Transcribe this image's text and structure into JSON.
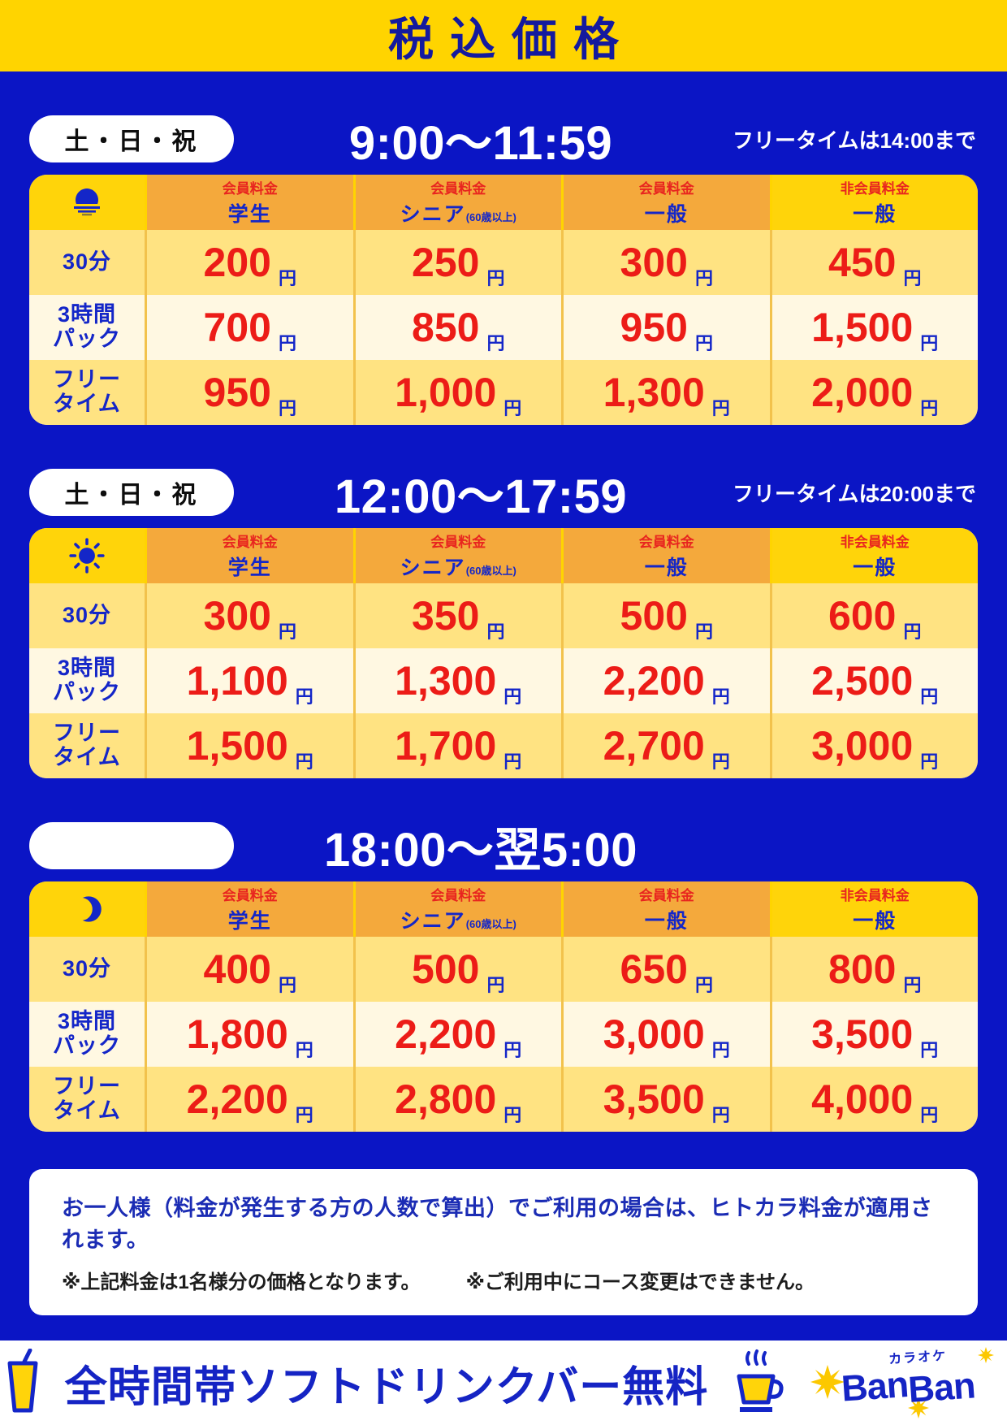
{
  "poster": {
    "title": "税込価格",
    "currency": "円"
  },
  "sections": [
    {
      "badge": "土・日・祝",
      "time_range": "9:00〜11:59",
      "freetime_note": "フリータイムは14:00まで",
      "icon": "sunrise-icon",
      "columns": [
        {
          "membership": "会員料金",
          "category": "学生",
          "suffix": ""
        },
        {
          "membership": "会員料金",
          "category": "シニア",
          "suffix": "(60歳以上)"
        },
        {
          "membership": "会員料金",
          "category": "一般",
          "suffix": ""
        },
        {
          "membership": "非会員料金",
          "category": "一般",
          "suffix": ""
        }
      ],
      "rows": [
        {
          "label_lines": [
            "30分"
          ],
          "prices": [
            "200",
            "250",
            "300",
            "450"
          ]
        },
        {
          "label_lines": [
            "3時間",
            "パック"
          ],
          "prices": [
            "700",
            "850",
            "950",
            "1,500"
          ]
        },
        {
          "label_lines": [
            "フリー",
            "タイム"
          ],
          "prices": [
            "950",
            "1,000",
            "1,300",
            "2,000"
          ]
        }
      ]
    },
    {
      "badge": "土・日・祝",
      "time_range": "12:00〜17:59",
      "freetime_note": "フリータイムは20:00まで",
      "icon": "sun-icon",
      "columns": [
        {
          "membership": "会員料金",
          "category": "学生",
          "suffix": ""
        },
        {
          "membership": "会員料金",
          "category": "シニア",
          "suffix": "(60歳以上)"
        },
        {
          "membership": "会員料金",
          "category": "一般",
          "suffix": ""
        },
        {
          "membership": "非会員料金",
          "category": "一般",
          "suffix": ""
        }
      ],
      "rows": [
        {
          "label_lines": [
            "30分"
          ],
          "prices": [
            "300",
            "350",
            "500",
            "600"
          ]
        },
        {
          "label_lines": [
            "3時間",
            "パック"
          ],
          "prices": [
            "1,100",
            "1,300",
            "2,200",
            "2,500"
          ]
        },
        {
          "label_lines": [
            "フリー",
            "タイム"
          ],
          "prices": [
            "1,500",
            "1,700",
            "2,700",
            "3,000"
          ]
        }
      ]
    },
    {
      "badge": "",
      "time_range": "18:00〜翌5:00",
      "freetime_note": "",
      "icon": "moon-icon",
      "columns": [
        {
          "membership": "会員料金",
          "category": "学生",
          "suffix": ""
        },
        {
          "membership": "会員料金",
          "category": "シニア",
          "suffix": "(60歳以上)"
        },
        {
          "membership": "会員料金",
          "category": "一般",
          "suffix": ""
        },
        {
          "membership": "非会員料金",
          "category": "一般",
          "suffix": ""
        }
      ],
      "rows": [
        {
          "label_lines": [
            "30分"
          ],
          "prices": [
            "400",
            "500",
            "650",
            "800"
          ]
        },
        {
          "label_lines": [
            "3時間",
            "パック"
          ],
          "prices": [
            "1,800",
            "2,200",
            "3,000",
            "3,500"
          ]
        },
        {
          "label_lines": [
            "フリー",
            "タイム"
          ],
          "prices": [
            "2,200",
            "2,800",
            "3,500",
            "4,000"
          ]
        }
      ]
    }
  ],
  "notice": {
    "line1": "お一人様（料金が発生する方の人数で算出）でご利用の場合は、ヒトカラ料金が適用されます。",
    "line2a": "※上記料金は1名様分の価格となります。",
    "line2b": "※ご利用中にコース変更はできません。"
  },
  "footer": {
    "text": "全時間帯ソフトドリンクバー無料",
    "logo_top": "カラオケ",
    "logo_parts": [
      "Ban",
      "Ban"
    ]
  },
  "colors": {
    "bg_blue": "#0b15c5",
    "banner_yellow": "#ffd400",
    "orange": "#f4a93c",
    "cell_yellow": "#ffd40a",
    "row_yellow": "#ffe382",
    "row_cream": "#fff8e2",
    "red": "#ec1c17",
    "text_blue": "#1426c8"
  }
}
